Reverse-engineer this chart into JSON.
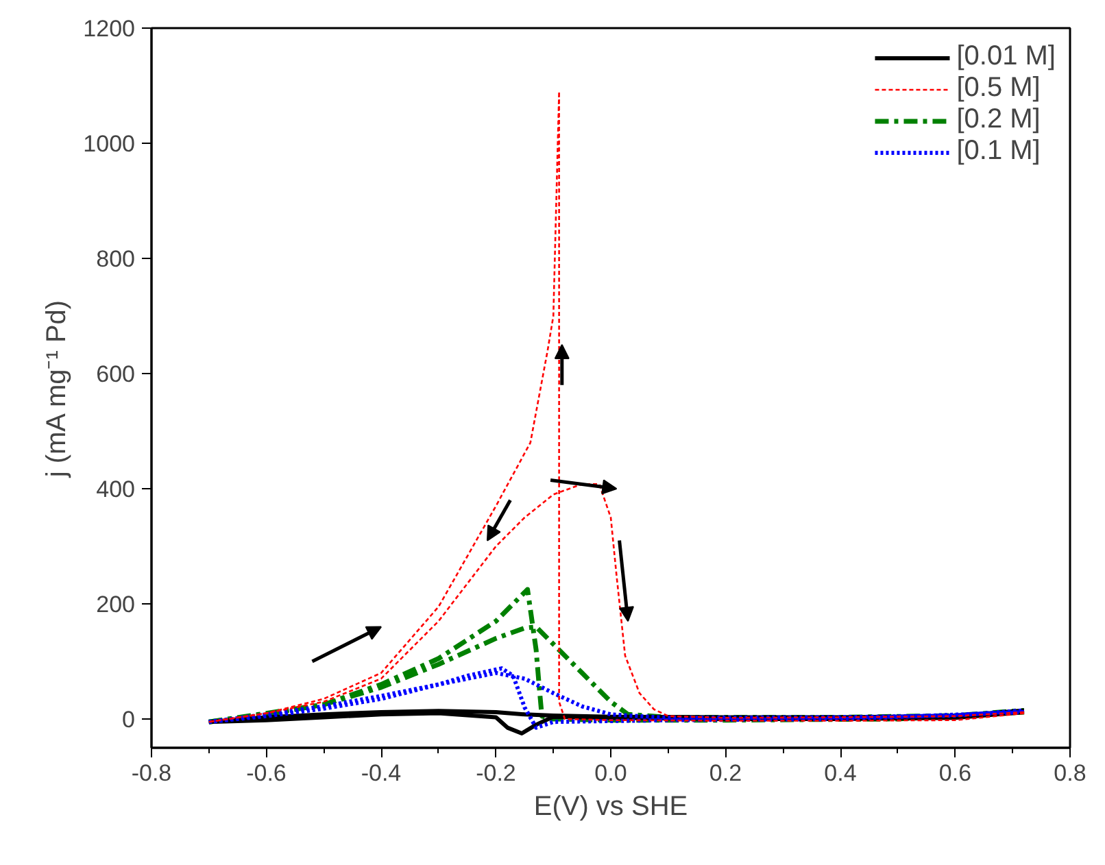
{
  "chart_data": {
    "type": "line",
    "xlabel": "E(V) vs SHE",
    "ylabel": "j (mA mg⁻¹ Pd)",
    "xlim": [
      -0.8,
      0.8
    ],
    "xticks": [
      {
        "value": -0.8,
        "label": "-0.8"
      },
      {
        "value": -0.6,
        "label": "-0.6"
      },
      {
        "value": -0.4,
        "label": "-0.4"
      },
      {
        "value": -0.2,
        "label": "-0.2"
      },
      {
        "value": 0,
        "label": "0.0"
      },
      {
        "value": 0.2,
        "label": "0.2"
      },
      {
        "value": 0.4,
        "label": "0.4"
      },
      {
        "value": 0.6,
        "label": "0.6"
      },
      {
        "value": 0.8,
        "label": "0.8"
      }
    ],
    "ylim": [
      -50,
      1200
    ],
    "yticks": [
      0,
      200,
      400,
      600,
      800,
      1000,
      1200
    ],
    "grid": false,
    "legend": "top right",
    "marker": "none",
    "series": [
      {
        "name": "[0.01 M]",
        "color": "#000000",
        "line_style": "solid",
        "x": [
          -0.7,
          -0.6,
          -0.5,
          -0.4,
          -0.3,
          -0.2,
          -0.15,
          -0.1,
          0,
          0.2,
          0.4,
          0.6,
          0.72
        ],
        "values": [
          -5,
          3,
          8,
          12,
          14,
          12,
          8,
          6,
          4,
          3,
          3,
          5,
          15
        ]
      },
      {
        "color": "#000000",
        "line_style": "solid",
        "x": [
          0.72,
          0.6,
          0.4,
          0.2,
          0,
          -0.1,
          -0.13,
          -0.155,
          -0.18,
          -0.2,
          -0.3,
          -0.4,
          -0.5,
          -0.6,
          -0.7
        ],
        "values": [
          12,
          2,
          0,
          0,
          2,
          4,
          -10,
          -25,
          -15,
          3,
          10,
          8,
          3,
          -2,
          -5
        ]
      },
      {
        "name": "[0.5 M]",
        "color": "#ff0000",
        "line_style": "dashed",
        "x": [
          -0.7,
          -0.6,
          -0.5,
          -0.4,
          -0.3,
          -0.2,
          -0.15,
          -0.1,
          -0.05,
          -0.02,
          0,
          0.01,
          0.025,
          0.05,
          0.075,
          0.1,
          0.2,
          0.4,
          0.6,
          0.72
        ],
        "values": [
          -5,
          10,
          30,
          70,
          170,
          300,
          350,
          390,
          408,
          408,
          350,
          250,
          110,
          45,
          17,
          5,
          2,
          3,
          5,
          12
        ]
      },
      {
        "color": "#ff0000",
        "line_style": "dashed",
        "x": [
          0.72,
          0.6,
          0.4,
          0.2,
          0,
          -0.08,
          -0.09,
          -0.09,
          -0.09,
          -0.09,
          -0.1,
          -0.11,
          -0.14,
          -0.2,
          -0.3,
          -0.4,
          -0.5,
          -0.6,
          -0.7
        ],
        "values": [
          10,
          -2,
          -3,
          -3,
          -2,
          0,
          30,
          300,
          600,
          1090,
          700,
          640,
          480,
          370,
          195,
          80,
          35,
          10,
          -5
        ]
      },
      {
        "name": "[0.2 M]",
        "color": "#008000",
        "line_style": "dashdot",
        "x": [
          -0.7,
          -0.6,
          -0.5,
          -0.4,
          -0.3,
          -0.2,
          -0.15,
          -0.13,
          -0.1,
          -0.05,
          0,
          0.03,
          0.1,
          0.4,
          0.6,
          0.72
        ],
        "values": [
          -5,
          10,
          25,
          55,
          95,
          140,
          158,
          160,
          130,
          80,
          30,
          8,
          3,
          3,
          6,
          15
        ]
      },
      {
        "color": "#008000",
        "line_style": "dashdot",
        "x": [
          0.72,
          0.5,
          0.2,
          0,
          -0.1,
          -0.12,
          -0.125,
          -0.13,
          -0.145,
          -0.2,
          -0.3,
          -0.4,
          -0.5,
          -0.6,
          -0.7
        ],
        "values": [
          12,
          0,
          -2,
          -2,
          0,
          5,
          60,
          120,
          225,
          170,
          105,
          60,
          25,
          8,
          -5
        ]
      },
      {
        "name": "[0.1 M]",
        "color": "#0000ff",
        "line_style": "dotted",
        "x": [
          -0.7,
          -0.6,
          -0.5,
          -0.4,
          -0.3,
          -0.2,
          -0.15,
          -0.1,
          -0.05,
          0,
          0.1,
          0.4,
          0.6,
          0.72
        ],
        "values": [
          -5,
          5,
          18,
          35,
          60,
          80,
          70,
          45,
          22,
          8,
          2,
          3,
          6,
          15
        ]
      },
      {
        "color": "#0000ff",
        "line_style": "dotted",
        "x": [
          0.72,
          0.4,
          0.1,
          -0.1,
          -0.13,
          -0.15,
          -0.17,
          -0.19,
          -0.25,
          -0.3,
          -0.4,
          -0.5,
          -0.6,
          -0.7
        ],
        "values": [
          12,
          0,
          -2,
          -5,
          -15,
          20,
          75,
          88,
          75,
          60,
          40,
          22,
          8,
          -5
        ]
      }
    ]
  }
}
